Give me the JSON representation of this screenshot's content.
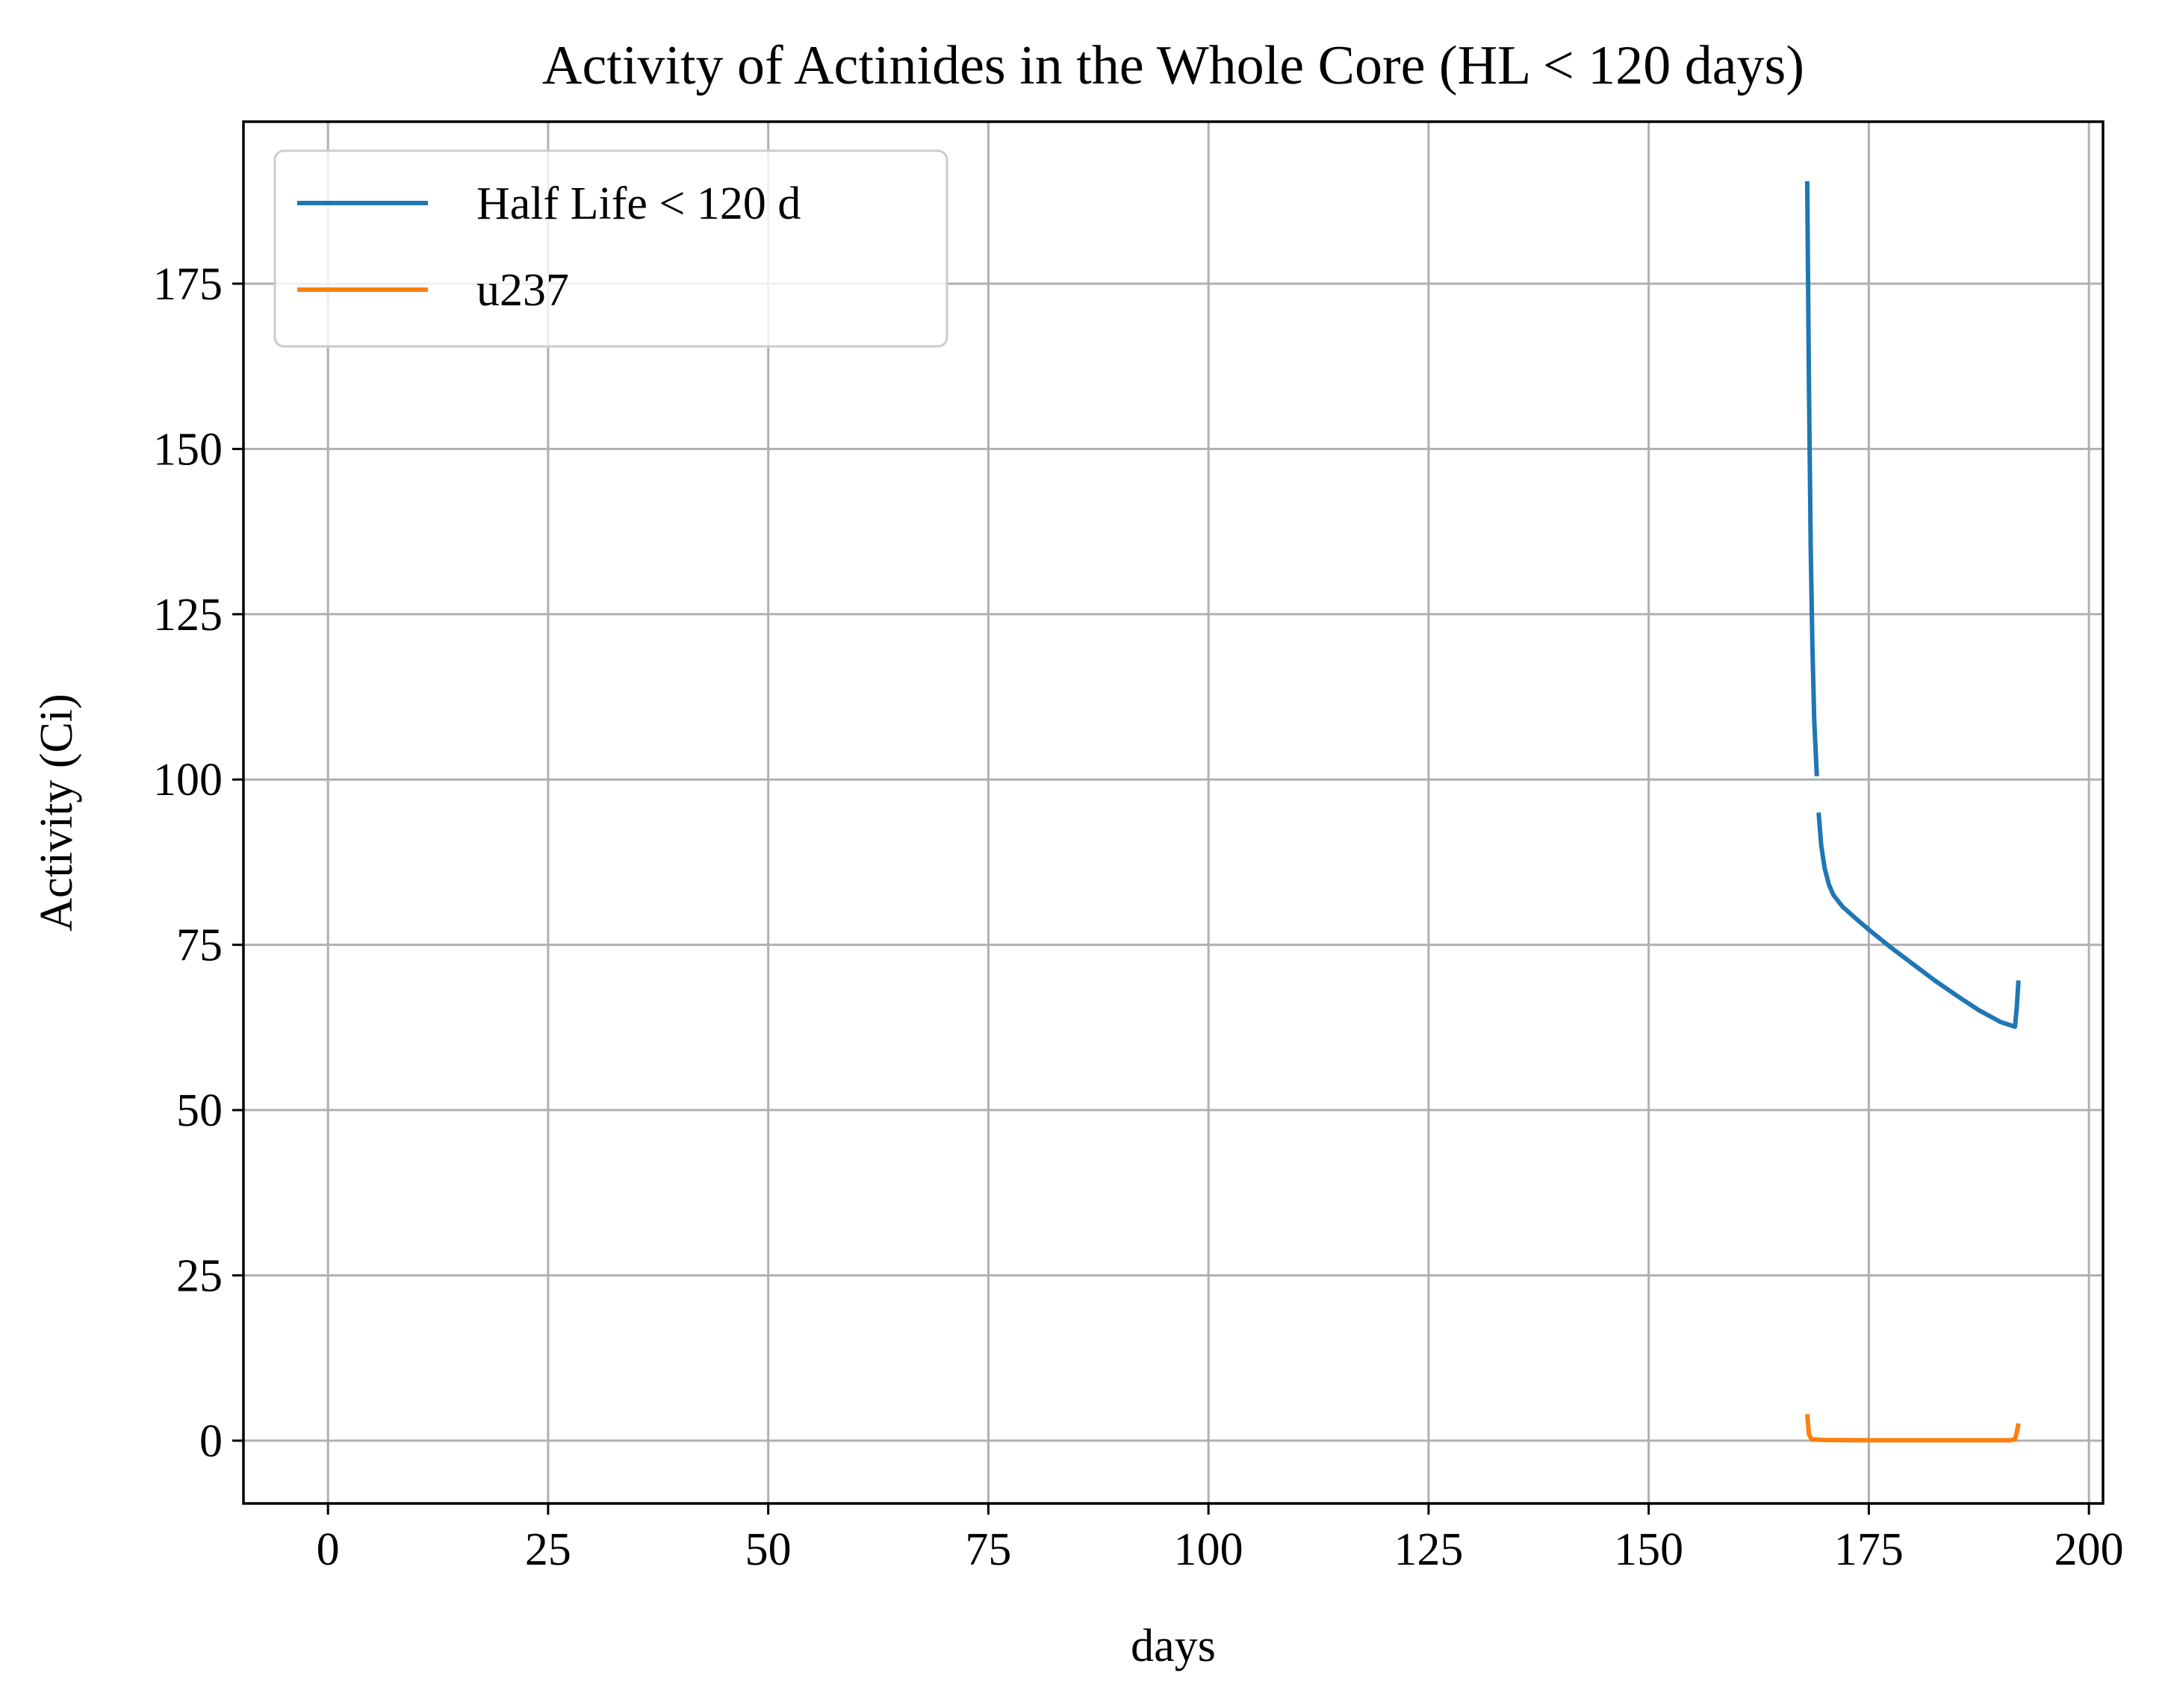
{
  "chart_data": {
    "type": "line",
    "title": "Activity of Actinides in the Whole Core (HL < 120 days)",
    "xlabel": "days",
    "ylabel": "Activity (Ci)",
    "xlim": [
      -9.6,
      201.6
    ],
    "ylim": [
      -9.5,
      199.5
    ],
    "xticks": [
      0,
      25,
      50,
      75,
      100,
      125,
      150,
      175,
      200
    ],
    "yticks": [
      0,
      25,
      50,
      75,
      100,
      125,
      150,
      175
    ],
    "xtick_labels": [
      "0",
      "25",
      "50",
      "75",
      "100",
      "125",
      "150",
      "175",
      "200"
    ],
    "ytick_labels": [
      "0",
      "25",
      "50",
      "75",
      "100",
      "125",
      "150",
      "175"
    ],
    "grid": true,
    "legend_position": "top-left",
    "series": [
      {
        "name": "Half Life < 120 d",
        "color": "#1f77b4",
        "segments": [
          [
            [
              168.0,
              190.5
            ],
            [
              168.2,
              160.0
            ],
            [
              168.4,
              135.0
            ],
            [
              168.6,
              120.0
            ],
            [
              168.8,
              109.0
            ],
            [
              169.1,
              100.5
            ]
          ],
          [
            [
              169.3,
              95.0
            ],
            [
              169.6,
              90.0
            ],
            [
              170.0,
              86.5
            ],
            [
              170.5,
              84.0
            ],
            [
              171.0,
              82.5
            ],
            [
              172.0,
              80.8
            ],
            [
              173.5,
              79.0
            ],
            [
              175.0,
              77.3
            ],
            [
              177.5,
              74.6
            ],
            [
              180.0,
              72.1
            ],
            [
              182.5,
              69.6
            ],
            [
              185.0,
              67.3
            ],
            [
              187.5,
              65.1
            ],
            [
              190.0,
              63.3
            ],
            [
              191.6,
              62.6
            ],
            [
              191.8,
              65.5
            ],
            [
              192.0,
              69.6
            ]
          ]
        ]
      },
      {
        "name": "u237",
        "color": "#ff7f0e",
        "segments": [
          [
            [
              168.0,
              4.0
            ],
            [
              168.2,
              1.0
            ],
            [
              168.5,
              0.2
            ],
            [
              170.0,
              0.1
            ],
            [
              175.0,
              0.05
            ],
            [
              180.0,
              0.05
            ],
            [
              185.0,
              0.05
            ],
            [
              191.0,
              0.05
            ],
            [
              191.6,
              0.2
            ],
            [
              191.8,
              1.2
            ],
            [
              192.0,
              2.6
            ]
          ]
        ]
      }
    ]
  }
}
